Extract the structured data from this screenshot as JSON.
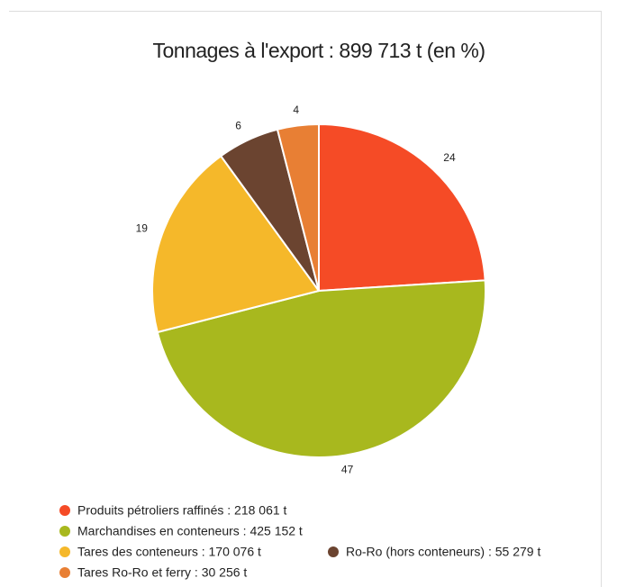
{
  "chart_data": {
    "type": "pie",
    "title": "Tonnages à l'export : 899 713 t (en %)",
    "categories": [
      "Produits pétroliers raffinés : 218 061 t",
      "Marchandises en conteneurs : 425 152 t",
      "Tares des conteneurs : 170 076 t",
      "Ro-Ro (hors conteneurs) : 55 279 t",
      "Tares Ro-Ro et ferry : 30 256 t"
    ],
    "values": [
      24,
      47,
      19,
      6,
      4
    ],
    "colors": [
      "#f54b26",
      "#a8b81e",
      "#f5b82a",
      "#6b4430",
      "#e87f34"
    ],
    "start_angle": 0,
    "direction": "clockwise",
    "legend": "bottom-left"
  }
}
